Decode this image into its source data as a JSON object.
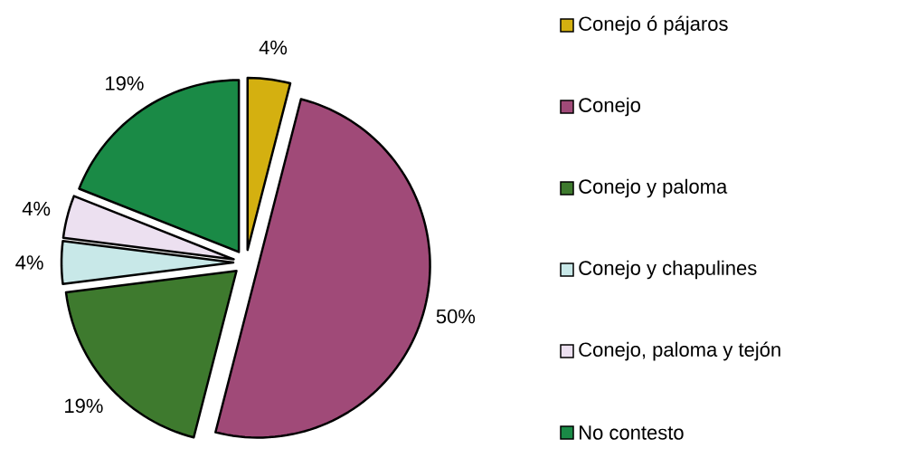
{
  "chart_data": {
    "type": "pie",
    "categories": [
      "Conejo ó pájaros",
      "Conejo",
      "Conejo y paloma",
      "Conejo y chapulines",
      "Conejo, paloma y tejón",
      "No contesto"
    ],
    "values": [
      4,
      50,
      19,
      4,
      4,
      19
    ],
    "value_labels": [
      "4%",
      "50%",
      "19%",
      "4%",
      "4%",
      "19%"
    ],
    "colors": [
      "#d4b010",
      "#a04a78",
      "#3e7a2e",
      "#c8e8e8",
      "#ece0f0",
      "#1a8a46"
    ],
    "legend": "right"
  }
}
